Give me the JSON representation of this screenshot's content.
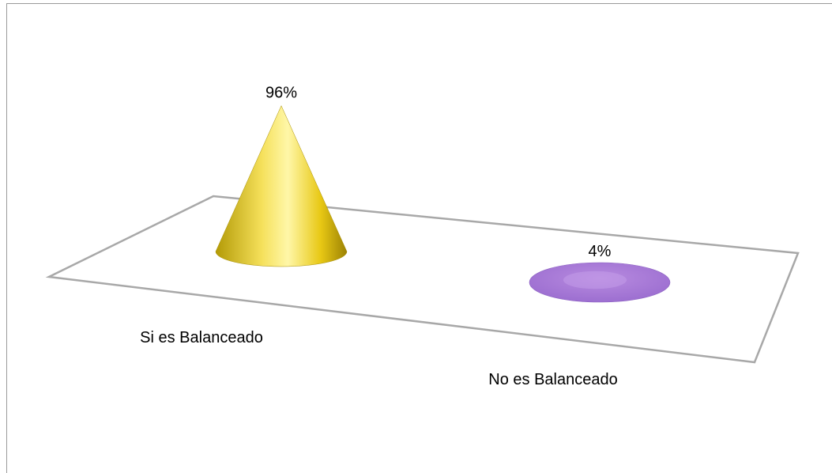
{
  "chart_data": {
    "type": "bar",
    "style": "3d-cone",
    "categories": [
      "Si es Balanceado",
      "No es Balanceado"
    ],
    "values": [
      96,
      4
    ],
    "data_labels": [
      "96%",
      "4%"
    ],
    "ylim": [
      0,
      100
    ],
    "grid": false,
    "legend": "none",
    "colors": [
      "#f2d21b",
      "#a57ad4"
    ]
  }
}
